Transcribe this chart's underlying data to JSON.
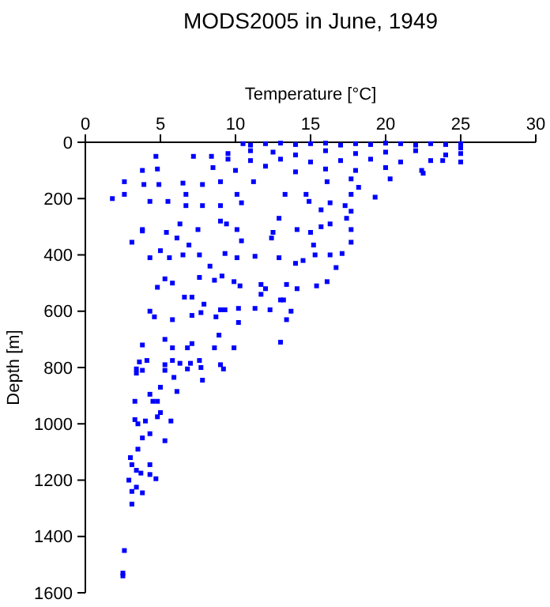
{
  "chart_data": {
    "type": "scatter",
    "title": "MODS2005 in June, 1949",
    "xlabel": "Temperature [°C]",
    "ylabel": "Depth [m]",
    "xlim": [
      0,
      30
    ],
    "xticks": [
      0,
      5,
      10,
      15,
      20,
      25,
      30
    ],
    "ylim": [
      1600,
      0
    ],
    "yticks": [
      0,
      200,
      400,
      600,
      800,
      1000,
      1200,
      1400,
      1600
    ],
    "marker": "square",
    "grid": false,
    "series": [
      {
        "color": "#0000ff",
        "x": [
          10.5,
          11,
          12,
          13,
          14,
          15,
          16,
          17,
          18,
          19,
          20,
          21,
          22,
          23,
          24,
          25,
          25,
          9.5,
          11,
          12.5,
          14,
          16,
          18,
          20,
          22,
          24,
          25,
          9.5,
          11,
          13,
          15,
          17,
          19,
          21,
          23,
          25,
          8.5,
          10,
          12,
          14,
          16,
          18,
          20,
          22.5,
          4.7,
          3.8,
          7.2,
          8.4,
          4.8,
          2.6,
          1.8,
          2.6,
          3.9,
          4.9,
          6.5,
          6.7,
          7.8,
          9,
          10.1,
          11.2,
          13.3,
          14.7,
          16.1,
          17.7,
          17.7,
          18.2,
          19.3,
          20.3,
          22.4,
          23.8,
          4.3,
          5.5,
          6.7,
          7.8,
          9,
          10.4,
          14.9,
          16.3,
          17.3,
          15.7,
          17.7,
          3.8,
          5.4,
          6.3,
          7.5,
          9,
          9.4,
          10.1,
          12.9,
          12.5,
          14.1,
          15,
          15.7,
          16.3,
          17.4,
          17.7,
          3.1,
          3.8,
          5,
          6.1,
          6.9,
          10.4,
          12.4,
          15.2,
          17.7,
          4.3,
          5.6,
          6.5,
          7.6,
          8.3,
          9.3,
          10.1,
          11.3,
          12.9,
          14,
          14.5,
          15.3,
          16.3,
          17.1,
          16.7,
          4.8,
          5.3,
          5.8,
          7.6,
          8.6,
          9.1,
          9.9,
          10.3,
          11.7,
          12,
          13.4,
          14.1,
          15.4,
          16.1,
          11.7,
          13.2,
          6.6,
          7.1,
          7.9,
          7.7,
          8.7,
          9,
          9.3,
          10.2,
          11.3,
          12.3,
          13,
          13.7,
          13.4,
          4.3,
          4.6,
          5.8,
          7.1,
          10.2,
          8.9,
          13,
          5.3,
          3.8,
          5.8,
          6.8,
          7.1,
          8.6,
          9.9,
          3.6,
          4.1,
          3.4,
          5.8,
          6.3,
          7,
          7.6,
          5.3,
          9,
          7.7,
          3.4,
          3.8,
          5.3,
          5.9,
          5,
          6.1,
          7.8,
          6.8,
          9.2,
          4.3,
          3.3,
          4.5,
          4.8,
          5,
          4.8,
          5.7,
          3.3,
          3.5,
          4,
          4.3,
          3.8,
          5.3,
          3.5,
          3,
          3.1,
          4.3,
          3.4,
          3.7,
          4.3,
          4.7,
          2.9,
          3.4,
          3.1,
          3.8,
          3.1,
          2.6,
          2.5,
          2.5
        ],
        "values": [
          5,
          10,
          5,
          3,
          8,
          5,
          3,
          10,
          5,
          8,
          3,
          5,
          10,
          5,
          8,
          5,
          20,
          40,
          30,
          35,
          45,
          30,
          40,
          35,
          30,
          45,
          40,
          60,
          65,
          60,
          70,
          65,
          60,
          70,
          65,
          70,
          90,
          100,
          85,
          105,
          95,
          100,
          90,
          110,
          50,
          100,
          50,
          50,
          95,
          140,
          200,
          185,
          150,
          150,
          145,
          185,
          150,
          140,
          185,
          140,
          185,
          185,
          140,
          130,
          185,
          160,
          195,
          130,
          100,
          65,
          210,
          210,
          225,
          225,
          225,
          215,
          210,
          215,
          225,
          240,
          245,
          310,
          320,
          290,
          310,
          280,
          290,
          310,
          270,
          320,
          310,
          320,
          300,
          290,
          270,
          310,
          355,
          315,
          385,
          340,
          365,
          350,
          340,
          365,
          355,
          410,
          410,
          400,
          400,
          440,
          395,
          410,
          405,
          410,
          430,
          420,
          400,
          400,
          395,
          445,
          515,
          485,
          500,
          480,
          490,
          475,
          495,
          510,
          505,
          520,
          505,
          520,
          510,
          495,
          540,
          560,
          550,
          550,
          575,
          605,
          620,
          595,
          595,
          590,
          590,
          595,
          560,
          600,
          630,
          600,
          620,
          630,
          615,
          640,
          685,
          710,
          700,
          720,
          730,
          730,
          715,
          730,
          730,
          780,
          775,
          805,
          775,
          785,
          785,
          775,
          790,
          790,
          800,
          820,
          810,
          810,
          835,
          870,
          885,
          845,
          805,
          805,
          895,
          920,
          920,
          920,
          960,
          975,
          990,
          985,
          1000,
          990,
          1035,
          1050,
          1060,
          1090,
          1120,
          1145,
          1145,
          1165,
          1175,
          1180,
          1195,
          1200,
          1225,
          1240,
          1245,
          1285,
          1450,
          1530,
          1540
        ]
      }
    ]
  }
}
